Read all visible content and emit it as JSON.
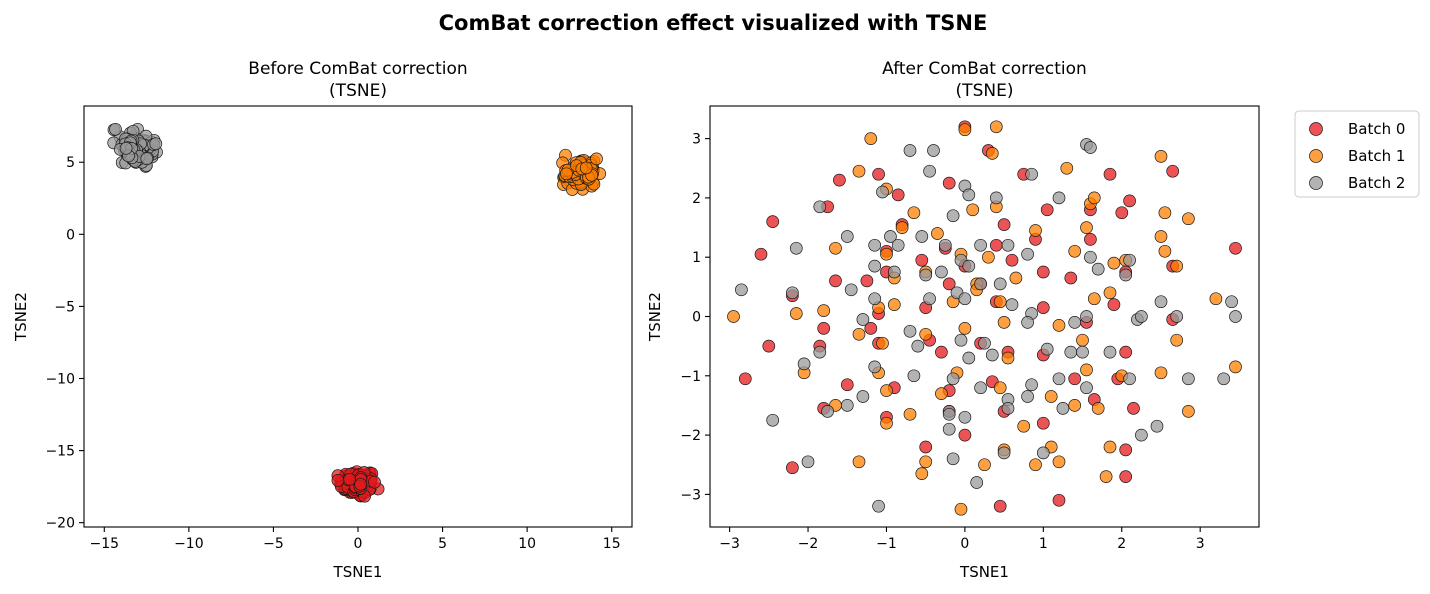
{
  "figure": {
    "title": "ComBat correction effect visualized with TSNE"
  },
  "colors": {
    "batch_0": "#e41a1c",
    "batch_1": "#ff7f00",
    "batch_2": "#999999"
  },
  "chart_data": [
    {
      "type": "scatter",
      "title": "Before ComBat correction\n(TSNE)",
      "xlabel": "TSNE1",
      "ylabel": "TSNE2",
      "xlim": [
        -16.2,
        16.2
      ],
      "ylim": [
        -20.3,
        8.9
      ],
      "xticks": [
        -15,
        -10,
        -5,
        0,
        5,
        10,
        15
      ],
      "yticks": [
        -20,
        -15,
        -10,
        -5,
        0,
        5
      ],
      "grid": false,
      "series": [
        {
          "name": "Batch 0",
          "cluster": {
            "center": [
              0,
              -17.3
            ],
            "spread": [
              1.2,
              1.1
            ],
            "count": 100
          }
        },
        {
          "name": "Batch 1",
          "cluster": {
            "center": [
              13.1,
              4.3
            ],
            "spread": [
              1.2,
              1.2
            ],
            "count": 100
          }
        },
        {
          "name": "Batch 2",
          "cluster": {
            "center": [
              -13.2,
              6.0
            ],
            "spread": [
              1.3,
              1.3
            ],
            "count": 100
          }
        }
      ]
    },
    {
      "type": "scatter",
      "title": "After ComBat correction\n(TSNE)",
      "xlabel": "TSNE1",
      "ylabel": "TSNE2",
      "xlim": [
        -3.25,
        3.75
      ],
      "ylim": [
        -3.55,
        3.55
      ],
      "xticks": [
        -3,
        -2,
        -1,
        0,
        1,
        2,
        3
      ],
      "yticks": [
        -3,
        -2,
        -1,
        0,
        1,
        2,
        3
      ],
      "grid": false,
      "legend": {
        "position": "outside-upper-right",
        "entries": [
          "Batch 0",
          "Batch 1",
          "Batch 2"
        ]
      },
      "series": [
        {
          "name": "Batch 0",
          "points": [
            [
              0.0,
              3.2
            ],
            [
              0.3,
              2.8
            ],
            [
              -0.2,
              2.25
            ],
            [
              -1.6,
              2.3
            ],
            [
              -1.1,
              2.4
            ],
            [
              0.75,
              2.4
            ],
            [
              2.65,
              2.45
            ],
            [
              -1.75,
              1.85
            ],
            [
              -0.85,
              2.05
            ],
            [
              1.6,
              1.8
            ],
            [
              2.1,
              1.95
            ],
            [
              1.85,
              2.4
            ],
            [
              -2.45,
              1.6
            ],
            [
              -0.8,
              1.55
            ],
            [
              0.5,
              1.55
            ],
            [
              1.05,
              1.8
            ],
            [
              2.0,
              1.75
            ],
            [
              -1.0,
              1.1
            ],
            [
              -0.25,
              1.15
            ],
            [
              0.4,
              1.2
            ],
            [
              0.9,
              1.3
            ],
            [
              1.6,
              1.3
            ],
            [
              -2.6,
              1.05
            ],
            [
              -1.0,
              0.75
            ],
            [
              -0.55,
              0.95
            ],
            [
              0.0,
              0.85
            ],
            [
              0.6,
              0.95
            ],
            [
              1.0,
              0.75
            ],
            [
              2.05,
              0.75
            ],
            [
              3.45,
              1.15
            ],
            [
              -1.65,
              0.6
            ],
            [
              -1.25,
              0.6
            ],
            [
              -0.2,
              0.55
            ],
            [
              0.2,
              0.55
            ],
            [
              1.35,
              0.65
            ],
            [
              2.65,
              0.85
            ],
            [
              -2.2,
              0.35
            ],
            [
              -1.1,
              0.05
            ],
            [
              -0.5,
              0.15
            ],
            [
              0.4,
              0.25
            ],
            [
              1.0,
              0.15
            ],
            [
              1.9,
              0.2
            ],
            [
              -1.8,
              -0.2
            ],
            [
              -1.2,
              -0.2
            ],
            [
              -0.45,
              -0.4
            ],
            [
              0.2,
              -0.45
            ],
            [
              1.55,
              -0.1
            ],
            [
              2.65,
              -0.05
            ],
            [
              -2.5,
              -0.5
            ],
            [
              -1.85,
              -0.5
            ],
            [
              -1.1,
              -0.45
            ],
            [
              -0.3,
              -0.6
            ],
            [
              0.55,
              -0.6
            ],
            [
              1.0,
              -0.65
            ],
            [
              2.05,
              -0.6
            ],
            [
              -2.8,
              -1.05
            ],
            [
              -1.5,
              -1.15
            ],
            [
              -0.9,
              -1.2
            ],
            [
              -0.2,
              -1.25
            ],
            [
              0.35,
              -1.1
            ],
            [
              1.4,
              -1.05
            ],
            [
              1.95,
              -1.05
            ],
            [
              -1.8,
              -1.55
            ],
            [
              -1.0,
              -1.7
            ],
            [
              -0.2,
              -1.6
            ],
            [
              0.5,
              -1.6
            ],
            [
              1.65,
              -1.4
            ],
            [
              2.15,
              -1.55
            ],
            [
              -2.2,
              -2.55
            ],
            [
              -0.5,
              -2.2
            ],
            [
              0.0,
              -2.0
            ],
            [
              1.0,
              -1.8
            ],
            [
              2.05,
              -2.25
            ],
            [
              2.05,
              -2.7
            ],
            [
              0.45,
              -3.2
            ],
            [
              1.2,
              -3.1
            ]
          ]
        },
        {
          "name": "Batch 1",
          "points": [
            [
              0.0,
              3.15
            ],
            [
              0.4,
              3.2
            ],
            [
              0.35,
              2.75
            ],
            [
              -1.2,
              3.0
            ],
            [
              -1.35,
              2.45
            ],
            [
              1.3,
              2.5
            ],
            [
              2.5,
              2.7
            ],
            [
              -1.0,
              2.15
            ],
            [
              -0.65,
              1.75
            ],
            [
              0.1,
              1.8
            ],
            [
              0.4,
              1.85
            ],
            [
              1.6,
              1.9
            ],
            [
              1.65,
              2.0
            ],
            [
              2.55,
              1.75
            ],
            [
              2.85,
              1.65
            ],
            [
              0.9,
              1.45
            ],
            [
              -0.8,
              1.5
            ],
            [
              -1.65,
              1.15
            ],
            [
              -0.35,
              1.4
            ],
            [
              1.55,
              1.5
            ],
            [
              2.5,
              1.35
            ],
            [
              -1.0,
              1.05
            ],
            [
              -0.05,
              1.05
            ],
            [
              0.3,
              1.0
            ],
            [
              1.4,
              1.1
            ],
            [
              1.9,
              0.9
            ],
            [
              2.05,
              0.95
            ],
            [
              2.55,
              1.1
            ],
            [
              -0.9,
              0.65
            ],
            [
              0.15,
              0.55
            ],
            [
              0.65,
              0.65
            ],
            [
              1.65,
              0.3
            ],
            [
              2.7,
              0.85
            ],
            [
              -0.5,
              0.75
            ],
            [
              -2.15,
              0.05
            ],
            [
              -1.1,
              0.15
            ],
            [
              -0.9,
              0.2
            ],
            [
              -0.15,
              0.25
            ],
            [
              0.15,
              0.45
            ],
            [
              0.45,
              0.25
            ],
            [
              1.85,
              0.4
            ],
            [
              -1.8,
              0.1
            ],
            [
              -1.35,
              -0.3
            ],
            [
              -1.05,
              -0.45
            ],
            [
              -0.5,
              -0.3
            ],
            [
              0.0,
              -0.2
            ],
            [
              0.5,
              -0.1
            ],
            [
              1.2,
              -0.15
            ],
            [
              1.5,
              -0.4
            ],
            [
              3.2,
              0.3
            ],
            [
              -2.05,
              -0.95
            ],
            [
              -1.1,
              -0.95
            ],
            [
              -0.1,
              -0.95
            ],
            [
              0.55,
              -0.7
            ],
            [
              1.55,
              -0.9
            ],
            [
              2.5,
              -0.95
            ],
            [
              3.45,
              -0.85
            ],
            [
              -1.65,
              -1.5
            ],
            [
              -1.0,
              -1.25
            ],
            [
              -0.3,
              -1.3
            ],
            [
              0.45,
              -1.2
            ],
            [
              1.1,
              -1.35
            ],
            [
              1.7,
              -1.55
            ],
            [
              2.0,
              -1.0
            ],
            [
              2.85,
              -1.6
            ],
            [
              -1.0,
              -1.8
            ],
            [
              -0.7,
              -1.65
            ],
            [
              0.75,
              -1.85
            ],
            [
              1.4,
              -1.5
            ],
            [
              1.85,
              -2.2
            ],
            [
              0.5,
              -2.25
            ],
            [
              -1.35,
              -2.45
            ],
            [
              -0.5,
              -2.45
            ],
            [
              0.9,
              -2.5
            ],
            [
              1.2,
              -2.45
            ],
            [
              -0.55,
              -2.65
            ],
            [
              1.1,
              -2.2
            ],
            [
              0.25,
              -2.5
            ],
            [
              -0.05,
              -3.25
            ],
            [
              1.8,
              -2.7
            ],
            [
              -2.95,
              0.0
            ],
            [
              2.7,
              -0.4
            ]
          ]
        },
        {
          "name": "Batch 2",
          "points": [
            [
              -0.7,
              2.8
            ],
            [
              -0.4,
              2.8
            ],
            [
              -0.45,
              2.45
            ],
            [
              0.0,
              2.2
            ],
            [
              0.05,
              2.05
            ],
            [
              0.4,
              2.0
            ],
            [
              0.85,
              2.4
            ],
            [
              1.2,
              2.0
            ],
            [
              1.55,
              2.9
            ],
            [
              1.6,
              2.85
            ],
            [
              -1.85,
              1.85
            ],
            [
              -1.05,
              2.1
            ],
            [
              -0.15,
              1.7
            ],
            [
              -0.95,
              1.35
            ],
            [
              -0.55,
              1.35
            ],
            [
              -0.25,
              1.2
            ],
            [
              0.2,
              1.2
            ],
            [
              0.55,
              1.2
            ],
            [
              -2.15,
              1.15
            ],
            [
              -1.5,
              1.35
            ],
            [
              -1.15,
              1.2
            ],
            [
              -0.85,
              1.2
            ],
            [
              -0.05,
              0.95
            ],
            [
              0.05,
              0.85
            ],
            [
              0.8,
              1.05
            ],
            [
              1.6,
              1.0
            ],
            [
              2.1,
              0.95
            ],
            [
              -1.15,
              0.85
            ],
            [
              -0.9,
              0.75
            ],
            [
              -0.5,
              0.7
            ],
            [
              -0.3,
              0.75
            ],
            [
              0.2,
              0.55
            ],
            [
              0.45,
              0.55
            ],
            [
              1.7,
              0.8
            ],
            [
              2.05,
              0.7
            ],
            [
              -2.2,
              0.4
            ],
            [
              -1.45,
              0.45
            ],
            [
              -1.15,
              0.3
            ],
            [
              -0.45,
              0.3
            ],
            [
              -0.1,
              0.4
            ],
            [
              0.0,
              0.3
            ],
            [
              0.6,
              0.2
            ],
            [
              0.85,
              0.05
            ],
            [
              1.55,
              0.0
            ],
            [
              2.2,
              -0.05
            ],
            [
              2.5,
              0.25
            ],
            [
              3.4,
              0.25
            ],
            [
              -1.3,
              -0.05
            ],
            [
              -0.7,
              -0.25
            ],
            [
              -0.05,
              -0.4
            ],
            [
              0.25,
              -0.45
            ],
            [
              0.8,
              -0.1
            ],
            [
              1.4,
              -0.1
            ],
            [
              2.25,
              0.0
            ],
            [
              2.7,
              0.0
            ],
            [
              -1.85,
              -0.6
            ],
            [
              -1.15,
              -0.85
            ],
            [
              -0.6,
              -0.5
            ],
            [
              0.35,
              -0.65
            ],
            [
              1.05,
              -0.55
            ],
            [
              1.35,
              -0.6
            ],
            [
              1.85,
              -0.6
            ],
            [
              -2.05,
              -0.8
            ],
            [
              -1.3,
              -1.35
            ],
            [
              -0.65,
              -1.0
            ],
            [
              -0.15,
              -1.05
            ],
            [
              0.05,
              -0.7
            ],
            [
              0.85,
              -1.15
            ],
            [
              1.2,
              -1.05
            ],
            [
              1.5,
              -0.6
            ],
            [
              2.1,
              -1.05
            ],
            [
              -1.5,
              -1.5
            ],
            [
              -0.2,
              -1.6
            ],
            [
              0.2,
              -1.2
            ],
            [
              0.55,
              -1.4
            ],
            [
              0.8,
              -1.35
            ],
            [
              1.55,
              -1.2
            ],
            [
              2.45,
              -1.85
            ],
            [
              3.3,
              -1.05
            ],
            [
              -2.45,
              -1.75
            ],
            [
              -1.75,
              -1.6
            ],
            [
              -0.2,
              -1.65
            ],
            [
              0.55,
              -1.55
            ],
            [
              1.25,
              -1.55
            ],
            [
              2.25,
              -2.0
            ],
            [
              -2.0,
              -2.45
            ],
            [
              -0.15,
              -2.4
            ],
            [
              0.5,
              -2.3
            ],
            [
              1.0,
              -2.3
            ],
            [
              -1.1,
              -3.2
            ],
            [
              0.15,
              -2.8
            ],
            [
              -2.85,
              0.45
            ],
            [
              3.45,
              0.0
            ],
            [
              0.0,
              -1.7
            ],
            [
              -0.2,
              -1.9
            ],
            [
              2.85,
              -1.05
            ]
          ]
        }
      ]
    }
  ]
}
